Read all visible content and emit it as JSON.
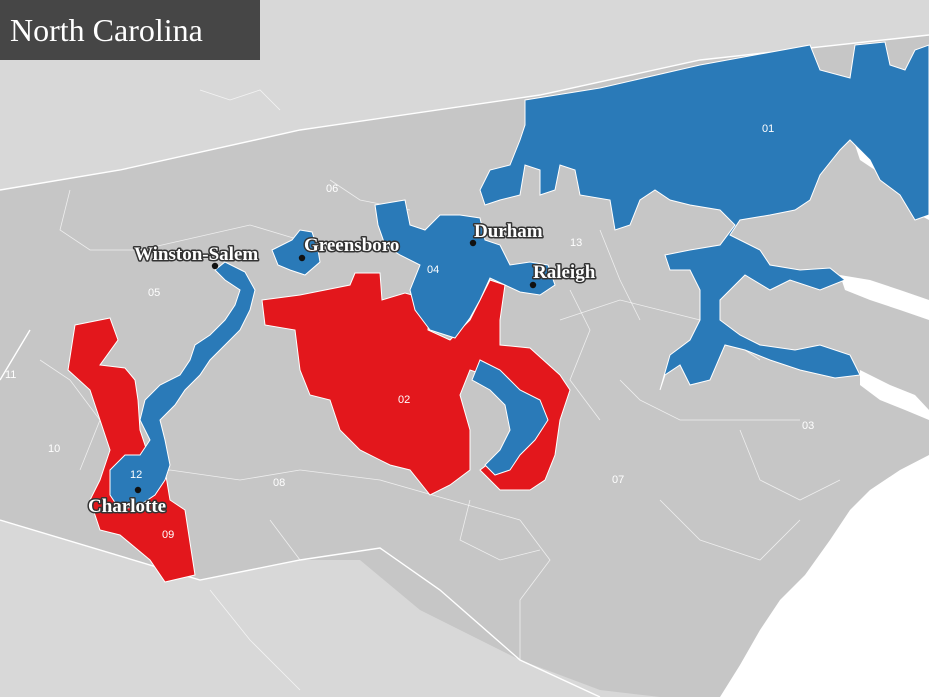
{
  "title": "North Carolina",
  "colors": {
    "background": "#d6d6d6",
    "land": "#c7c7c7",
    "ocean": "#ffffff",
    "democrat": "#2a7ab8",
    "republican": "#e3171c",
    "title_bg": "#464646"
  },
  "cities": [
    {
      "name": "Winston-Salem"
    },
    {
      "name": "Greensboro"
    },
    {
      "name": "Durham"
    },
    {
      "name": "Raleigh"
    },
    {
      "name": "Charlotte"
    }
  ],
  "districts": [
    {
      "number": "01",
      "party": "democrat"
    },
    {
      "number": "02",
      "party": "republican"
    },
    {
      "number": "03",
      "party": "other"
    },
    {
      "number": "04",
      "party": "democrat"
    },
    {
      "number": "05",
      "party": "other"
    },
    {
      "number": "06",
      "party": "other"
    },
    {
      "number": "07",
      "party": "other"
    },
    {
      "number": "08",
      "party": "other"
    },
    {
      "number": "09",
      "party": "republican"
    },
    {
      "number": "10",
      "party": "other"
    },
    {
      "number": "11",
      "party": "other"
    },
    {
      "number": "12",
      "party": "democrat"
    },
    {
      "number": "13",
      "party": "other"
    }
  ]
}
